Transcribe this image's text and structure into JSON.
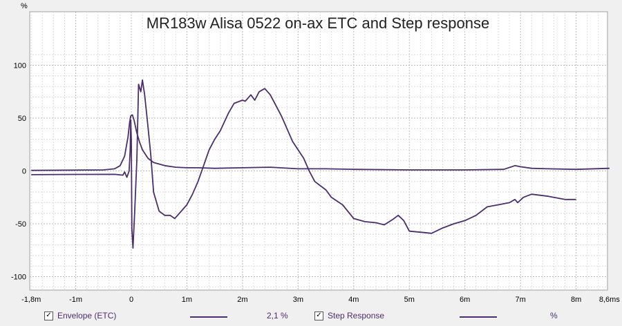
{
  "chart_data": {
    "type": "line",
    "title": "MR183w Alisa 0522 on-ax ETC and Step response",
    "y_unit_label": "%",
    "xlim": [
      -1.8,
      8.6
    ],
    "ylim": [
      -110,
      110
    ],
    "x_ticks": [
      {
        "value": -1.8,
        "label": "-1,8m"
      },
      {
        "value": -1,
        "label": "-1m"
      },
      {
        "value": 0,
        "label": "0"
      },
      {
        "value": 1,
        "label": "1m"
      },
      {
        "value": 2,
        "label": "2m"
      },
      {
        "value": 3,
        "label": "3m"
      },
      {
        "value": 4,
        "label": "4m"
      },
      {
        "value": 5,
        "label": "5m"
      },
      {
        "value": 6,
        "label": "6m"
      },
      {
        "value": 7,
        "label": "7m"
      },
      {
        "value": 8,
        "label": "8m"
      },
      {
        "value": 8.6,
        "label": "8,6ms"
      }
    ],
    "y_ticks": [
      {
        "value": 100,
        "label": "100"
      },
      {
        "value": 50,
        "label": "50"
      },
      {
        "value": 0,
        "label": "0"
      },
      {
        "value": -50,
        "label": "-50"
      },
      {
        "value": -100,
        "label": "-100"
      }
    ],
    "grid": true,
    "series": [
      {
        "name": "Envelope (ETC)",
        "color": "#4a2d6b",
        "points": [
          [
            -1.8,
            0.5
          ],
          [
            -1.0,
            0.8
          ],
          [
            -0.5,
            1
          ],
          [
            -0.3,
            2
          ],
          [
            -0.2,
            5
          ],
          [
            -0.12,
            14
          ],
          [
            -0.06,
            32
          ],
          [
            -0.03,
            46
          ],
          [
            -0.01,
            52
          ],
          [
            0.02,
            53
          ],
          [
            0.05,
            48
          ],
          [
            0.1,
            36
          ],
          [
            0.15,
            27
          ],
          [
            0.2,
            20
          ],
          [
            0.3,
            12
          ],
          [
            0.4,
            8
          ],
          [
            0.6,
            5
          ],
          [
            0.8,
            3.5
          ],
          [
            1.0,
            3
          ],
          [
            1.2,
            3
          ],
          [
            1.5,
            2.5
          ],
          [
            2.0,
            3
          ],
          [
            2.5,
            3.5
          ],
          [
            3.0,
            2
          ],
          [
            3.5,
            2
          ],
          [
            4.0,
            1.5
          ],
          [
            5.0,
            1
          ],
          [
            6.0,
            1
          ],
          [
            6.7,
            1.5
          ],
          [
            6.9,
            5
          ],
          [
            7.0,
            4
          ],
          [
            7.2,
            2.5
          ],
          [
            7.5,
            2
          ],
          [
            8.0,
            1.5
          ],
          [
            8.6,
            2.5
          ]
        ]
      },
      {
        "name": "Step Response",
        "color": "#4a2d6b",
        "points": [
          [
            -1.8,
            -3.5
          ],
          [
            -1.0,
            -3.3
          ],
          [
            -0.3,
            -3.2
          ],
          [
            -0.15,
            -4
          ],
          [
            -0.12,
            -1
          ],
          [
            -0.08,
            -6
          ],
          [
            -0.04,
            0
          ],
          [
            -0.02,
            20
          ],
          [
            -0.01,
            48
          ],
          [
            0.0,
            30
          ],
          [
            0.01,
            -55
          ],
          [
            0.03,
            -73
          ],
          [
            0.06,
            -40
          ],
          [
            0.1,
            10
          ],
          [
            0.13,
            82
          ],
          [
            0.17,
            75
          ],
          [
            0.2,
            86
          ],
          [
            0.24,
            72
          ],
          [
            0.3,
            42
          ],
          [
            0.35,
            15
          ],
          [
            0.4,
            -20
          ],
          [
            0.5,
            -38
          ],
          [
            0.6,
            -42
          ],
          [
            0.7,
            -42
          ],
          [
            0.78,
            -45
          ],
          [
            0.9,
            -38
          ],
          [
            1.0,
            -32
          ],
          [
            1.1,
            -22
          ],
          [
            1.2,
            -10
          ],
          [
            1.3,
            5
          ],
          [
            1.4,
            20
          ],
          [
            1.5,
            30
          ],
          [
            1.6,
            38
          ],
          [
            1.75,
            55
          ],
          [
            1.85,
            64
          ],
          [
            2.0,
            67
          ],
          [
            2.05,
            66
          ],
          [
            2.15,
            72
          ],
          [
            2.22,
            67
          ],
          [
            2.3,
            75
          ],
          [
            2.4,
            78
          ],
          [
            2.5,
            72
          ],
          [
            2.7,
            52
          ],
          [
            2.9,
            28
          ],
          [
            3.1,
            12
          ],
          [
            3.2,
            0
          ],
          [
            3.3,
            -10
          ],
          [
            3.5,
            -18
          ],
          [
            3.6,
            -25
          ],
          [
            3.8,
            -32
          ],
          [
            4.0,
            -45
          ],
          [
            4.2,
            -48
          ],
          [
            4.4,
            -49
          ],
          [
            4.55,
            -51
          ],
          [
            4.7,
            -46
          ],
          [
            4.8,
            -42
          ],
          [
            4.9,
            -47
          ],
          [
            5.0,
            -57
          ],
          [
            5.2,
            -58
          ],
          [
            5.4,
            -59
          ],
          [
            5.6,
            -54
          ],
          [
            5.8,
            -50
          ],
          [
            6.0,
            -47
          ],
          [
            6.2,
            -42
          ],
          [
            6.4,
            -34
          ],
          [
            6.6,
            -32
          ],
          [
            6.8,
            -30
          ],
          [
            6.9,
            -27
          ],
          [
            6.95,
            -30
          ],
          [
            7.05,
            -25
          ],
          [
            7.2,
            -22
          ],
          [
            7.5,
            -24
          ],
          [
            7.8,
            -27
          ],
          [
            8.0,
            -27
          ]
        ]
      }
    ]
  },
  "legend": {
    "items": [
      {
        "label": "Envelope (ETC)",
        "checked": "✓",
        "value": "2,1 %"
      },
      {
        "label": "Step Response",
        "checked": "✓",
        "value": "%"
      }
    ]
  }
}
